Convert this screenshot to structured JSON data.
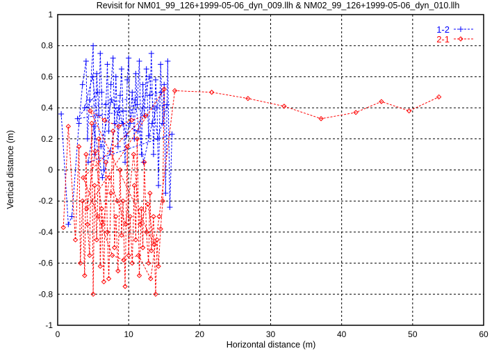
{
  "chart_data": {
    "type": "scatter",
    "title": "Revisit for NM01_99_126+1999-05-06_dyn_009.llh & NM02_99_126+1999-05-06_dyn_010.llh",
    "xlabel": "Horizontal distance (m)",
    "ylabel": "Vertical distance (m)",
    "xlim": [
      0,
      60
    ],
    "ylim": [
      -1,
      1
    ],
    "xticks": [
      0,
      10,
      20,
      30,
      40,
      50,
      60
    ],
    "yticks": [
      -1,
      -0.8,
      -0.6,
      -0.4,
      -0.2,
      0,
      0.2,
      0.4,
      0.6,
      0.8,
      1
    ],
    "grid": true,
    "legend_position": "top-right",
    "series": [
      {
        "name": "1-2",
        "color": "#0000ff",
        "marker": "plus",
        "points": [
          [
            0.5,
            0.36
          ],
          [
            1.5,
            -0.35
          ],
          [
            2,
            -0.3
          ],
          [
            3,
            0.3
          ],
          [
            3.5,
            0.55
          ],
          [
            4,
            0.7
          ],
          [
            4.2,
            0.2
          ],
          [
            4.5,
            0.45
          ],
          [
            5,
            0.8
          ],
          [
            5.2,
            0.1
          ],
          [
            5.5,
            0.62
          ],
          [
            5.8,
            0.35
          ],
          [
            6,
            0.75
          ],
          [
            6.2,
            0.5
          ],
          [
            6.5,
            0.0
          ],
          [
            6.8,
            0.42
          ],
          [
            7,
            0.68
          ],
          [
            7.2,
            0.25
          ],
          [
            7.5,
            0.55
          ],
          [
            7.8,
            0.72
          ],
          [
            8,
            0.3
          ],
          [
            8.2,
            0.6
          ],
          [
            8.5,
            0.15
          ],
          [
            8.8,
            0.48
          ],
          [
            9,
            0.65
          ],
          [
            9.2,
            0.38
          ],
          [
            9.5,
            0.05
          ],
          [
            9.8,
            0.58
          ],
          [
            10,
            0.72
          ],
          [
            10.2,
            0.3
          ],
          [
            10.5,
            0.5
          ],
          [
            10.8,
            0.2
          ],
          [
            11,
            0.62
          ],
          [
            11.2,
            0.42
          ],
          [
            11.5,
            0.7
          ],
          [
            11.8,
            0.1
          ],
          [
            12,
            0.55
          ],
          [
            12.2,
            0.35
          ],
          [
            12.5,
            0.65
          ],
          [
            12.8,
            0.22
          ],
          [
            13,
            0.48
          ],
          [
            13.2,
            0.75
          ],
          [
            13.5,
            0.1
          ],
          [
            13.8,
            0.58
          ],
          [
            14,
            0.4
          ],
          [
            14.2,
            -0.1
          ],
          [
            14.5,
            0.68
          ],
          [
            14.8,
            0.3
          ],
          [
            15,
            0.55
          ],
          [
            15.2,
            -0.15
          ],
          [
            15.5,
            0.7
          ],
          [
            15.8,
            -0.24
          ],
          [
            16.1,
            0.23
          ],
          [
            4.3,
            0.05
          ],
          [
            5.1,
            0.28
          ],
          [
            6.3,
            -0.05
          ],
          [
            7.4,
            0.12
          ],
          [
            8.6,
            0.4
          ],
          [
            9.7,
            0.22
          ],
          [
            10.9,
            0.45
          ],
          [
            12.1,
            0.05
          ],
          [
            13.3,
            0.3
          ],
          [
            14.6,
            0.5
          ],
          [
            3.8,
            0.4
          ],
          [
            4.9,
            0.6
          ],
          [
            6.1,
            0.15
          ],
          [
            7.6,
            0.45
          ],
          [
            9.1,
            0.3
          ],
          [
            11.3,
            0.25
          ],
          [
            12.9,
            0.6
          ],
          [
            14.1,
            0.2
          ],
          [
            15.4,
            0.42
          ],
          [
            2.8,
            0.33
          ],
          [
            5.6,
            0.5
          ]
        ]
      },
      {
        "name": "2-1",
        "color": "#ff0000",
        "marker": "diamond",
        "points": [
          [
            0.8,
            -0.37
          ],
          [
            1.5,
            0.28
          ],
          [
            2.5,
            -0.45
          ],
          [
            3,
            0.15
          ],
          [
            3.2,
            -0.6
          ],
          [
            3.5,
            -0.2
          ],
          [
            3.8,
            -0.68
          ],
          [
            4,
            0.1
          ],
          [
            4.2,
            -0.35
          ],
          [
            4.5,
            -0.55
          ],
          [
            4.8,
            0.3
          ],
          [
            5,
            -0.8
          ],
          [
            5.2,
            -0.1
          ],
          [
            5.5,
            -0.45
          ],
          [
            5.8,
            0.2
          ],
          [
            6,
            -0.62
          ],
          [
            6.2,
            -0.25
          ],
          [
            6.5,
            -0.72
          ],
          [
            6.8,
            0.05
          ],
          [
            7,
            -0.4
          ],
          [
            7.2,
            -0.7
          ],
          [
            7.5,
            -0.15
          ],
          [
            7.8,
            0.25
          ],
          [
            8,
            -0.5
          ],
          [
            8.2,
            -0.3
          ],
          [
            8.5,
            -0.65
          ],
          [
            8.8,
            0.0
          ],
          [
            9,
            -0.42
          ],
          [
            9.2,
            -0.2
          ],
          [
            9.5,
            -0.75
          ],
          [
            9.8,
            0.15
          ],
          [
            10,
            -0.55
          ],
          [
            10.2,
            -0.3
          ],
          [
            10.5,
            -0.6
          ],
          [
            10.8,
            -0.1
          ],
          [
            11,
            -0.45
          ],
          [
            11.2,
            0.2
          ],
          [
            11.5,
            -0.68
          ],
          [
            11.8,
            -0.25
          ],
          [
            12,
            -0.5
          ],
          [
            12.2,
            0.05
          ],
          [
            12.5,
            -0.4
          ],
          [
            12.8,
            -0.6
          ],
          [
            13,
            -0.15
          ],
          [
            13.2,
            -0.52
          ],
          [
            13.5,
            -0.3
          ],
          [
            13.8,
            -0.8
          ],
          [
            14,
            -0.45
          ],
          [
            14.2,
            -0.62
          ],
          [
            14.5,
            -0.38
          ],
          [
            14.8,
            -0.2
          ],
          [
            15,
            0.52
          ],
          [
            4.1,
            -0.25
          ],
          [
            5.3,
            0.12
          ],
          [
            6.4,
            -0.35
          ],
          [
            7.3,
            -0.05
          ],
          [
            8.4,
            -0.2
          ],
          [
            9.6,
            -0.35
          ],
          [
            10.7,
            0.1
          ],
          [
            11.6,
            -0.35
          ],
          [
            12.7,
            -0.22
          ],
          [
            13.6,
            -0.48
          ],
          [
            4.6,
            0.38
          ],
          [
            6.6,
            0.32
          ],
          [
            8.6,
            0.28
          ],
          [
            10.4,
            0.32
          ],
          [
            12.4,
            0.35
          ],
          [
            3.6,
            -0.05
          ],
          [
            5.7,
            -0.3
          ],
          [
            7.7,
            -0.55
          ],
          [
            9.3,
            -0.58
          ],
          [
            11.4,
            -0.55
          ],
          [
            13.1,
            -0.7
          ],
          [
            14.3,
            -0.3
          ],
          [
            16.5,
            0.51
          ],
          [
            21.7,
            0.5
          ],
          [
            26.8,
            0.46
          ],
          [
            31.9,
            0.41
          ],
          [
            37.1,
            0.33
          ],
          [
            42.0,
            0.37
          ],
          [
            45.6,
            0.44
          ],
          [
            49.5,
            0.38
          ],
          [
            53.7,
            0.47
          ]
        ]
      }
    ]
  }
}
